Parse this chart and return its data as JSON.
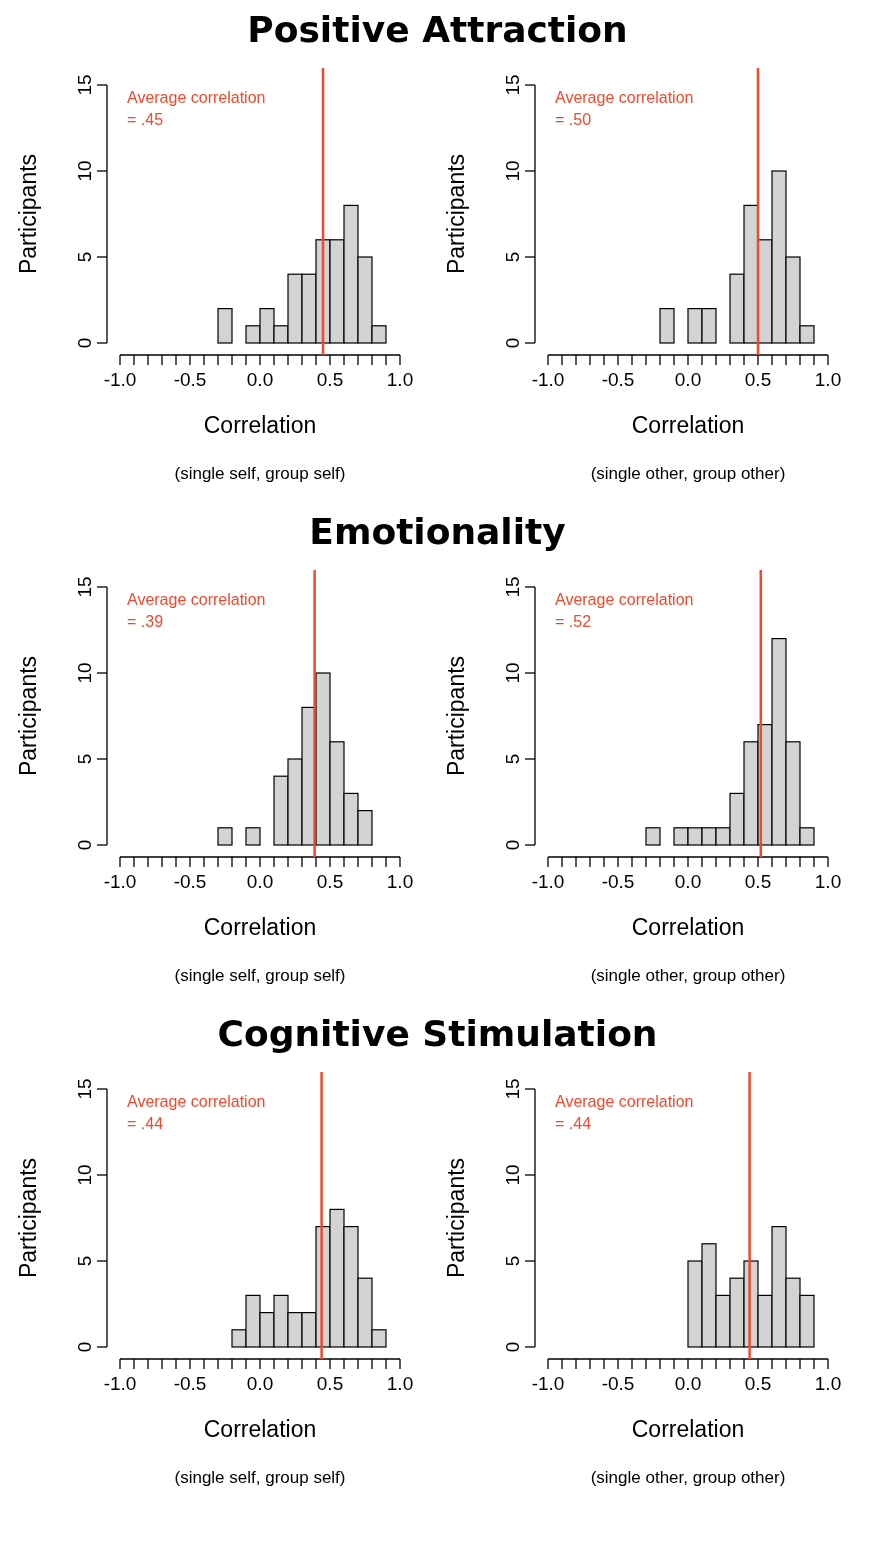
{
  "chart_data": [
    {
      "type": "histogram",
      "title": "Positive Attraction",
      "xlabel": "Correlation",
      "ylabel": "Participants",
      "annotations": [
        "(single self, group self)"
      ],
      "bins": [
        -0.3,
        -0.2,
        -0.1,
        0,
        0.1,
        0.2,
        0.3,
        0.4,
        0.5,
        0.6,
        0.7,
        0.8,
        0.9
      ],
      "values": [
        2,
        0,
        1,
        2,
        1,
        4,
        4,
        6,
        6,
        8,
        5,
        1
      ],
      "color": "#d3d3d3",
      "xlim": [
        -1,
        1
      ],
      "xticks": [
        {
          "value": -1,
          "label": "-1.0"
        },
        {
          "value": -0.9,
          "label": null
        },
        {
          "value": -0.8,
          "label": null
        },
        {
          "value": -0.7,
          "label": null
        },
        {
          "value": -0.6,
          "label": null
        },
        {
          "value": -0.5,
          "label": "-0.5"
        },
        {
          "value": -0.4,
          "label": null
        },
        {
          "value": -0.3,
          "label": null
        },
        {
          "value": -0.2,
          "label": null
        },
        {
          "value": -0.1,
          "label": null
        },
        {
          "value": 0,
          "label": "0.0"
        },
        {
          "value": 0.1,
          "label": null
        },
        {
          "value": 0.2,
          "label": null
        },
        {
          "value": 0.3,
          "label": null
        },
        {
          "value": 0.4,
          "label": null
        },
        {
          "value": 0.5,
          "label": "0.5"
        },
        {
          "value": 0.6,
          "label": null
        },
        {
          "value": 0.7,
          "label": null
        },
        {
          "value": 0.8,
          "label": null
        },
        {
          "value": 0.9,
          "label": null
        },
        {
          "value": 1,
          "label": "1.0"
        }
      ],
      "ylim": [
        0,
        15
      ],
      "yticks": [
        0,
        5,
        10,
        15
      ],
      "ref_lines": [
        {
          "axis": "x",
          "value": 0.45,
          "label": "Average correlation = .45",
          "color": "#ef4a2f"
        }
      ]
    },
    {
      "type": "histogram",
      "xlabel": "Correlation",
      "ylabel": "Participants",
      "annotations": [
        "(single other, group other)"
      ],
      "bins": [
        -0.2,
        -0.1,
        0,
        0.1,
        0.2,
        0.3,
        0.4,
        0.5,
        0.6,
        0.7,
        0.8,
        0.9
      ],
      "values": [
        2,
        0,
        2,
        2,
        0,
        4,
        8,
        6,
        10,
        5,
        1
      ],
      "color": "#d3d3d3",
      "xlim": [
        -1,
        1
      ],
      "xticks": [
        {
          "value": -1,
          "label": "-1.0"
        },
        {
          "value": -0.9,
          "label": null
        },
        {
          "value": -0.8,
          "label": null
        },
        {
          "value": -0.7,
          "label": null
        },
        {
          "value": -0.6,
          "label": null
        },
        {
          "value": -0.5,
          "label": "-0.5"
        },
        {
          "value": -0.4,
          "label": null
        },
        {
          "value": -0.3,
          "label": null
        },
        {
          "value": -0.2,
          "label": null
        },
        {
          "value": -0.1,
          "label": null
        },
        {
          "value": 0,
          "label": "0.0"
        },
        {
          "value": 0.1,
          "label": null
        },
        {
          "value": 0.2,
          "label": null
        },
        {
          "value": 0.3,
          "label": null
        },
        {
          "value": 0.4,
          "label": null
        },
        {
          "value": 0.5,
          "label": "0.5"
        },
        {
          "value": 0.6,
          "label": null
        },
        {
          "value": 0.7,
          "label": null
        },
        {
          "value": 0.8,
          "label": null
        },
        {
          "value": 0.9,
          "label": null
        },
        {
          "value": 1,
          "label": "1.0"
        }
      ],
      "ylim": [
        0,
        15
      ],
      "yticks": [
        0,
        5,
        10,
        15
      ],
      "ref_lines": [
        {
          "axis": "x",
          "value": 0.5,
          "label": "Average correlation = .50",
          "color": "#ef4a2f"
        }
      ]
    },
    {
      "type": "histogram",
      "title": "Emotionality",
      "xlabel": "Correlation",
      "ylabel": "Participants",
      "annotations": [
        "(single self, group self)"
      ],
      "bins": [
        -0.3,
        -0.2,
        -0.1,
        0,
        0.1,
        0.2,
        0.3,
        0.4,
        0.5,
        0.6,
        0.7,
        0.8
      ],
      "values": [
        1,
        0,
        1,
        0,
        4,
        5,
        8,
        10,
        6,
        3,
        2
      ],
      "color": "#d3d3d3",
      "xlim": [
        -1,
        1
      ],
      "xticks": [
        {
          "value": -1,
          "label": "-1.0"
        },
        {
          "value": -0.9,
          "label": null
        },
        {
          "value": -0.8,
          "label": null
        },
        {
          "value": -0.7,
          "label": null
        },
        {
          "value": -0.6,
          "label": null
        },
        {
          "value": -0.5,
          "label": "-0.5"
        },
        {
          "value": -0.4,
          "label": null
        },
        {
          "value": -0.3,
          "label": null
        },
        {
          "value": -0.2,
          "label": null
        },
        {
          "value": -0.1,
          "label": null
        },
        {
          "value": 0,
          "label": "0.0"
        },
        {
          "value": 0.1,
          "label": null
        },
        {
          "value": 0.2,
          "label": null
        },
        {
          "value": 0.3,
          "label": null
        },
        {
          "value": 0.4,
          "label": null
        },
        {
          "value": 0.5,
          "label": "0.5"
        },
        {
          "value": 0.6,
          "label": null
        },
        {
          "value": 0.7,
          "label": null
        },
        {
          "value": 0.8,
          "label": null
        },
        {
          "value": 0.9,
          "label": null
        },
        {
          "value": 1,
          "label": "1.0"
        }
      ],
      "ylim": [
        0,
        15
      ],
      "yticks": [
        0,
        5,
        10,
        15
      ],
      "ref_lines": [
        {
          "axis": "x",
          "value": 0.39,
          "label": "Average correlation = .39",
          "color": "#ef4a2f"
        }
      ]
    },
    {
      "type": "histogram",
      "xlabel": "Correlation",
      "ylabel": "Participants",
      "annotations": [
        "(single other, group other)"
      ],
      "bins": [
        -0.3,
        -0.2,
        -0.1,
        0,
        0.1,
        0.2,
        0.3,
        0.4,
        0.5,
        0.6,
        0.7,
        0.8,
        0.9
      ],
      "values": [
        1,
        0,
        1,
        1,
        1,
        1,
        3,
        6,
        7,
        12,
        6,
        1
      ],
      "color": "#d3d3d3",
      "xlim": [
        -1,
        1
      ],
      "xticks": [
        {
          "value": -1,
          "label": "-1.0"
        },
        {
          "value": -0.9,
          "label": null
        },
        {
          "value": -0.8,
          "label": null
        },
        {
          "value": -0.7,
          "label": null
        },
        {
          "value": -0.6,
          "label": null
        },
        {
          "value": -0.5,
          "label": "-0.5"
        },
        {
          "value": -0.4,
          "label": null
        },
        {
          "value": -0.3,
          "label": null
        },
        {
          "value": -0.2,
          "label": null
        },
        {
          "value": -0.1,
          "label": null
        },
        {
          "value": 0,
          "label": "0.0"
        },
        {
          "value": 0.1,
          "label": null
        },
        {
          "value": 0.2,
          "label": null
        },
        {
          "value": 0.3,
          "label": null
        },
        {
          "value": 0.4,
          "label": null
        },
        {
          "value": 0.5,
          "label": "0.5"
        },
        {
          "value": 0.6,
          "label": null
        },
        {
          "value": 0.7,
          "label": null
        },
        {
          "value": 0.8,
          "label": null
        },
        {
          "value": 0.9,
          "label": null
        },
        {
          "value": 1,
          "label": "1.0"
        }
      ],
      "ylim": [
        0,
        15
      ],
      "yticks": [
        0,
        5,
        10,
        15
      ],
      "ref_lines": [
        {
          "axis": "x",
          "value": 0.52,
          "label": "Average correlation = .52",
          "color": "#ef4a2f"
        }
      ]
    },
    {
      "type": "histogram",
      "title": "Cognitive Stimulation",
      "xlabel": "Correlation",
      "ylabel": "Participants",
      "annotations": [
        "(single self, group self)"
      ],
      "bins": [
        -0.2,
        -0.1,
        0,
        0.1,
        0.2,
        0.3,
        0.4,
        0.5,
        0.6,
        0.7,
        0.8,
        0.9
      ],
      "values": [
        1,
        3,
        2,
        3,
        2,
        2,
        7,
        8,
        7,
        4,
        1
      ],
      "color": "#d3d3d3",
      "xlim": [
        -1,
        1
      ],
      "xticks": [
        {
          "value": -1,
          "label": "-1.0"
        },
        {
          "value": -0.9,
          "label": null
        },
        {
          "value": -0.8,
          "label": null
        },
        {
          "value": -0.7,
          "label": null
        },
        {
          "value": -0.6,
          "label": null
        },
        {
          "value": -0.5,
          "label": "-0.5"
        },
        {
          "value": -0.4,
          "label": null
        },
        {
          "value": -0.3,
          "label": null
        },
        {
          "value": -0.2,
          "label": null
        },
        {
          "value": -0.1,
          "label": null
        },
        {
          "value": 0,
          "label": "0.0"
        },
        {
          "value": 0.1,
          "label": null
        },
        {
          "value": 0.2,
          "label": null
        },
        {
          "value": 0.3,
          "label": null
        },
        {
          "value": 0.4,
          "label": null
        },
        {
          "value": 0.5,
          "label": "0.5"
        },
        {
          "value": 0.6,
          "label": null
        },
        {
          "value": 0.7,
          "label": null
        },
        {
          "value": 0.8,
          "label": null
        },
        {
          "value": 0.9,
          "label": null
        },
        {
          "value": 1,
          "label": "1.0"
        }
      ],
      "ylim": [
        0,
        15
      ],
      "yticks": [
        0,
        5,
        10,
        15
      ],
      "ref_lines": [
        {
          "axis": "x",
          "value": 0.44,
          "label": "Average correlation = .44",
          "color": "#ef4a2f"
        }
      ]
    },
    {
      "type": "histogram",
      "xlabel": "Correlation",
      "ylabel": "Participants",
      "annotations": [
        "(single other, group other)"
      ],
      "bins": [
        0,
        0.1,
        0.2,
        0.3,
        0.4,
        0.5,
        0.6,
        0.7,
        0.8,
        0.9
      ],
      "values": [
        5,
        6,
        3,
        4,
        5,
        3,
        7,
        4,
        3
      ],
      "color": "#d3d3d3",
      "xlim": [
        -1,
        1
      ],
      "xticks": [
        {
          "value": -1,
          "label": "-1.0"
        },
        {
          "value": -0.9,
          "label": null
        },
        {
          "value": -0.8,
          "label": null
        },
        {
          "value": -0.7,
          "label": null
        },
        {
          "value": -0.6,
          "label": null
        },
        {
          "value": -0.5,
          "label": "-0.5"
        },
        {
          "value": -0.4,
          "label": null
        },
        {
          "value": -0.3,
          "label": null
        },
        {
          "value": -0.2,
          "label": null
        },
        {
          "value": -0.1,
          "label": null
        },
        {
          "value": 0,
          "label": "0.0"
        },
        {
          "value": 0.1,
          "label": null
        },
        {
          "value": 0.2,
          "label": null
        },
        {
          "value": 0.3,
          "label": null
        },
        {
          "value": 0.4,
          "label": null
        },
        {
          "value": 0.5,
          "label": "0.5"
        },
        {
          "value": 0.6,
          "label": null
        },
        {
          "value": 0.7,
          "label": null
        },
        {
          "value": 0.8,
          "label": null
        },
        {
          "value": 0.9,
          "label": null
        },
        {
          "value": 1,
          "label": "1.0"
        }
      ],
      "ylim": [
        0,
        15
      ],
      "yticks": [
        0,
        5,
        10,
        15
      ],
      "ref_lines": [
        {
          "axis": "x",
          "value": 0.44,
          "label": "Average correlation = .44",
          "color": "#ef4a2f"
        }
      ]
    }
  ]
}
